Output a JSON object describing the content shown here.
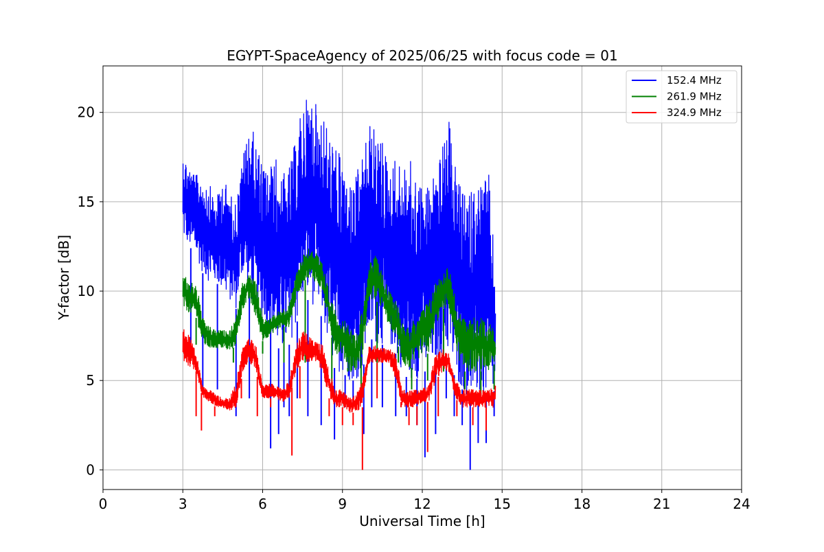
{
  "chart_data": {
    "type": "line",
    "title": "EGYPT-SpaceAgency of 2025/06/25 with focus code = 01",
    "xlabel": "Universal Time [h]",
    "ylabel": "Y-factor [dB]",
    "xlim": [
      0,
      24
    ],
    "ylim": [
      -1.1,
      22.6
    ],
    "xticks": [
      0,
      3,
      6,
      9,
      12,
      15,
      18,
      21,
      24
    ],
    "yticks": [
      0,
      5,
      10,
      15,
      20
    ],
    "grid": true,
    "legend_position": "top-right",
    "series": [
      {
        "name": "152.4 MHz",
        "color": "#0000ff",
        "x": [
          3.0,
          3.25,
          3.5,
          3.75,
          4.0,
          4.25,
          4.5,
          4.75,
          5.0,
          5.25,
          5.5,
          5.75,
          6.0,
          6.25,
          6.5,
          6.75,
          7.0,
          7.25,
          7.5,
          7.75,
          8.0,
          8.25,
          8.5,
          8.75,
          9.0,
          9.25,
          9.5,
          9.75,
          10.0,
          10.25,
          10.5,
          10.75,
          11.0,
          11.25,
          11.5,
          11.75,
          12.0,
          12.25,
          12.5,
          12.75,
          13.0,
          13.25,
          13.5,
          13.75,
          14.0,
          14.25,
          14.5,
          14.75
        ],
        "low": [
          13.0,
          12.5,
          12.0,
          11.0,
          10.5,
          10.5,
          10.0,
          9.5,
          9.0,
          11.0,
          10.0,
          8.5,
          8.5,
          8.0,
          7.0,
          6.5,
          7.0,
          8.0,
          9.5,
          9.5,
          9.0,
          8.5,
          6.5,
          5.5,
          5.5,
          5.0,
          5.0,
          5.5,
          7.5,
          7.0,
          7.0,
          7.0,
          6.5,
          5.5,
          5.0,
          5.0,
          5.5,
          5.5,
          6.0,
          6.5,
          6.5,
          5.0,
          4.5,
          4.0,
          4.0,
          4.0,
          4.0,
          4.5
        ],
        "high": [
          17.8,
          17.0,
          16.5,
          16.5,
          16.0,
          15.0,
          16.5,
          15.5,
          15.0,
          17.5,
          19.5,
          18.5,
          17.0,
          17.0,
          17.5,
          16.5,
          17.0,
          18.5,
          20.5,
          21.0,
          20.5,
          20.0,
          19.0,
          18.0,
          17.5,
          16.0,
          16.5,
          17.5,
          19.5,
          19.0,
          18.5,
          17.0,
          17.5,
          17.0,
          17.5,
          16.5,
          16.0,
          16.0,
          17.0,
          18.0,
          19.5,
          17.0,
          15.5,
          15.5,
          16.0,
          16.5,
          16.5,
          11.0
        ],
        "dips_x": [
          3.3,
          3.75,
          4.3,
          5.0,
          5.5,
          6.3,
          6.6,
          6.8,
          7.0,
          7.3,
          7.7,
          8.2,
          8.7,
          9.1,
          9.4,
          9.8,
          10.1,
          10.5,
          11.0,
          11.4,
          11.8,
          12.1,
          12.5,
          12.9,
          13.2,
          13.5,
          13.8,
          14.1,
          14.4,
          14.7
        ],
        "dips_y": [
          6.5,
          4.5,
          4.5,
          3.0,
          4.0,
          1.2,
          2.0,
          3.5,
          3.0,
          4.0,
          3.0,
          2.5,
          1.7,
          3.5,
          3.5,
          2.0,
          3.5,
          3.5,
          3.0,
          3.0,
          2.5,
          0.7,
          2.0,
          4.0,
          3.0,
          2.5,
          0.0,
          1.5,
          1.5,
          3.0
        ]
      },
      {
        "name": "261.9 MHz",
        "color": "#008000",
        "x": [
          3.0,
          3.25,
          3.5,
          3.75,
          4.0,
          4.25,
          4.5,
          4.75,
          5.0,
          5.25,
          5.5,
          5.75,
          6.0,
          6.25,
          6.5,
          6.75,
          7.0,
          7.25,
          7.5,
          7.75,
          8.0,
          8.25,
          8.5,
          8.75,
          9.0,
          9.25,
          9.5,
          9.75,
          10.0,
          10.25,
          10.5,
          10.75,
          11.0,
          11.25,
          11.5,
          11.75,
          12.0,
          12.25,
          12.5,
          12.75,
          13.0,
          13.25,
          13.5,
          13.75,
          14.0,
          14.25,
          14.5,
          14.75
        ],
        "low": [
          9.0,
          8.8,
          8.5,
          7.0,
          6.8,
          6.8,
          6.8,
          6.6,
          7.0,
          9.0,
          9.5,
          8.5,
          7.2,
          7.5,
          7.8,
          8.0,
          8.0,
          9.5,
          10.5,
          10.8,
          10.5,
          10.0,
          8.0,
          6.5,
          6.5,
          5.5,
          5.5,
          6.5,
          9.5,
          9.5,
          9.0,
          8.0,
          7.5,
          6.0,
          5.5,
          6.0,
          6.5,
          6.5,
          8.0,
          9.0,
          9.0,
          7.0,
          5.5,
          5.5,
          5.5,
          5.5,
          5.5,
          6.0
        ],
        "high": [
          11.0,
          10.5,
          10.5,
          8.5,
          8.0,
          7.8,
          7.8,
          7.8,
          8.5,
          10.5,
          11.0,
          10.5,
          8.5,
          8.5,
          8.8,
          9.0,
          9.2,
          11.0,
          12.0,
          12.5,
          12.2,
          11.5,
          10.0,
          8.8,
          8.5,
          8.0,
          7.5,
          9.0,
          11.5,
          12.0,
          11.0,
          10.0,
          9.5,
          8.5,
          8.0,
          8.5,
          9.0,
          9.5,
          10.5,
          11.0,
          11.5,
          9.5,
          8.5,
          8.5,
          8.5,
          8.5,
          8.5,
          7.5
        ],
        "dips_x": [
          3.5,
          4.9,
          6.0,
          6.8,
          7.6,
          8.6,
          9.2,
          9.7,
          10.3,
          11.1,
          11.6,
          12.2,
          12.8,
          13.6,
          14.2,
          14.7
        ],
        "dips_y": [
          7.0,
          6.0,
          6.5,
          6.0,
          6.0,
          4.5,
          5.5,
          4.0,
          5.0,
          6.0,
          4.5,
          5.0,
          5.5,
          4.5,
          4.0,
          4.5
        ]
      },
      {
        "name": "324.9 MHz",
        "color": "#ff0000",
        "x": [
          3.0,
          3.25,
          3.5,
          3.75,
          4.0,
          4.25,
          4.5,
          4.75,
          5.0,
          5.25,
          5.5,
          5.75,
          6.0,
          6.25,
          6.5,
          6.75,
          7.0,
          7.25,
          7.5,
          7.75,
          8.0,
          8.25,
          8.5,
          8.75,
          9.0,
          9.25,
          9.5,
          9.75,
          10.0,
          10.25,
          10.5,
          10.75,
          11.0,
          11.25,
          11.5,
          11.75,
          12.0,
          12.25,
          12.5,
          12.75,
          13.0,
          13.25,
          13.5,
          13.75,
          14.0,
          14.25,
          14.5,
          14.75
        ],
        "low": [
          6.0,
          5.8,
          5.5,
          4.0,
          3.8,
          3.5,
          3.4,
          3.3,
          3.5,
          5.5,
          6.0,
          5.5,
          4.0,
          4.0,
          4.0,
          3.8,
          4.0,
          5.5,
          6.0,
          6.0,
          6.0,
          5.5,
          4.0,
          3.5,
          3.5,
          3.2,
          3.2,
          3.5,
          6.0,
          6.0,
          6.0,
          6.0,
          5.0,
          3.5,
          3.5,
          3.5,
          3.8,
          3.8,
          5.0,
          5.5,
          5.5,
          4.0,
          3.5,
          3.5,
          3.5,
          3.5,
          3.5,
          3.5
        ],
        "high": [
          8.2,
          7.5,
          6.5,
          4.8,
          4.5,
          4.2,
          4.0,
          4.0,
          5.0,
          6.8,
          7.5,
          7.0,
          4.8,
          4.8,
          4.8,
          4.5,
          5.0,
          7.0,
          7.8,
          7.5,
          7.2,
          7.0,
          5.5,
          4.5,
          4.5,
          4.0,
          4.2,
          5.0,
          7.0,
          7.0,
          6.8,
          6.8,
          6.5,
          4.5,
          4.5,
          4.5,
          4.5,
          4.8,
          6.5,
          6.8,
          6.5,
          5.0,
          4.5,
          4.5,
          4.5,
          4.5,
          4.5,
          4.8
        ],
        "dips_x": [
          3.5,
          3.7,
          4.2,
          5.2,
          5.8,
          6.3,
          7.1,
          7.4,
          8.5,
          9.0,
          9.4,
          9.75,
          10.3,
          11.2,
          11.5,
          11.8,
          12.2,
          12.6,
          13.3,
          13.9,
          14.4
        ],
        "dips_y": [
          3.0,
          2.2,
          3.0,
          4.0,
          3.0,
          3.5,
          0.8,
          4.0,
          3.0,
          2.5,
          2.5,
          0.0,
          4.0,
          3.5,
          2.5,
          2.5,
          1.0,
          3.0,
          3.0,
          2.5,
          2.2
        ]
      }
    ]
  }
}
